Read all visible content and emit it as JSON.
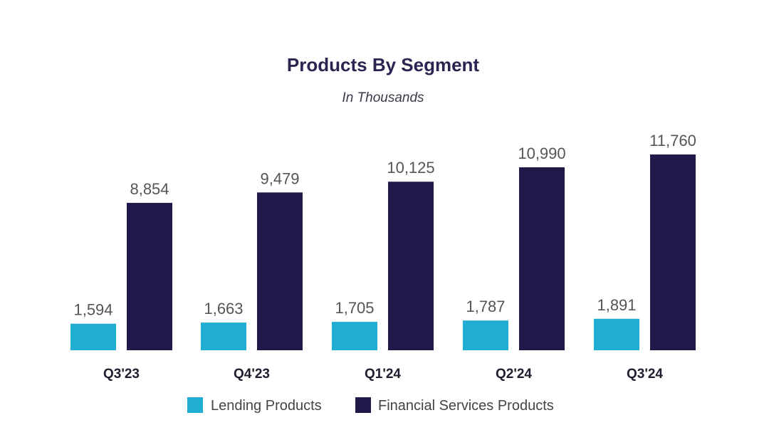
{
  "chart_data": {
    "type": "bar",
    "title": "Products By Segment",
    "subtitle": "In Thousands",
    "categories": [
      "Q3'23",
      "Q4'23",
      "Q1'24",
      "Q2'24",
      "Q3'24"
    ],
    "series": [
      {
        "name": "Lending Products",
        "values": [
          1594,
          1663,
          1705,
          1787,
          1891
        ],
        "labels": [
          "1,594",
          "1,663",
          "1,705",
          "1,787",
          "1,891"
        ],
        "color": "#1fadd4"
      },
      {
        "name": "Financial Services Products",
        "values": [
          8854,
          9479,
          10125,
          10990,
          11760
        ],
        "labels": [
          "8,854",
          "9,479",
          "10,125",
          "10,990",
          "11,760"
        ],
        "color": "#1f1a4a"
      }
    ],
    "ylim": [
      0,
      12000
    ],
    "grid": false,
    "legend_position": "bottom"
  }
}
